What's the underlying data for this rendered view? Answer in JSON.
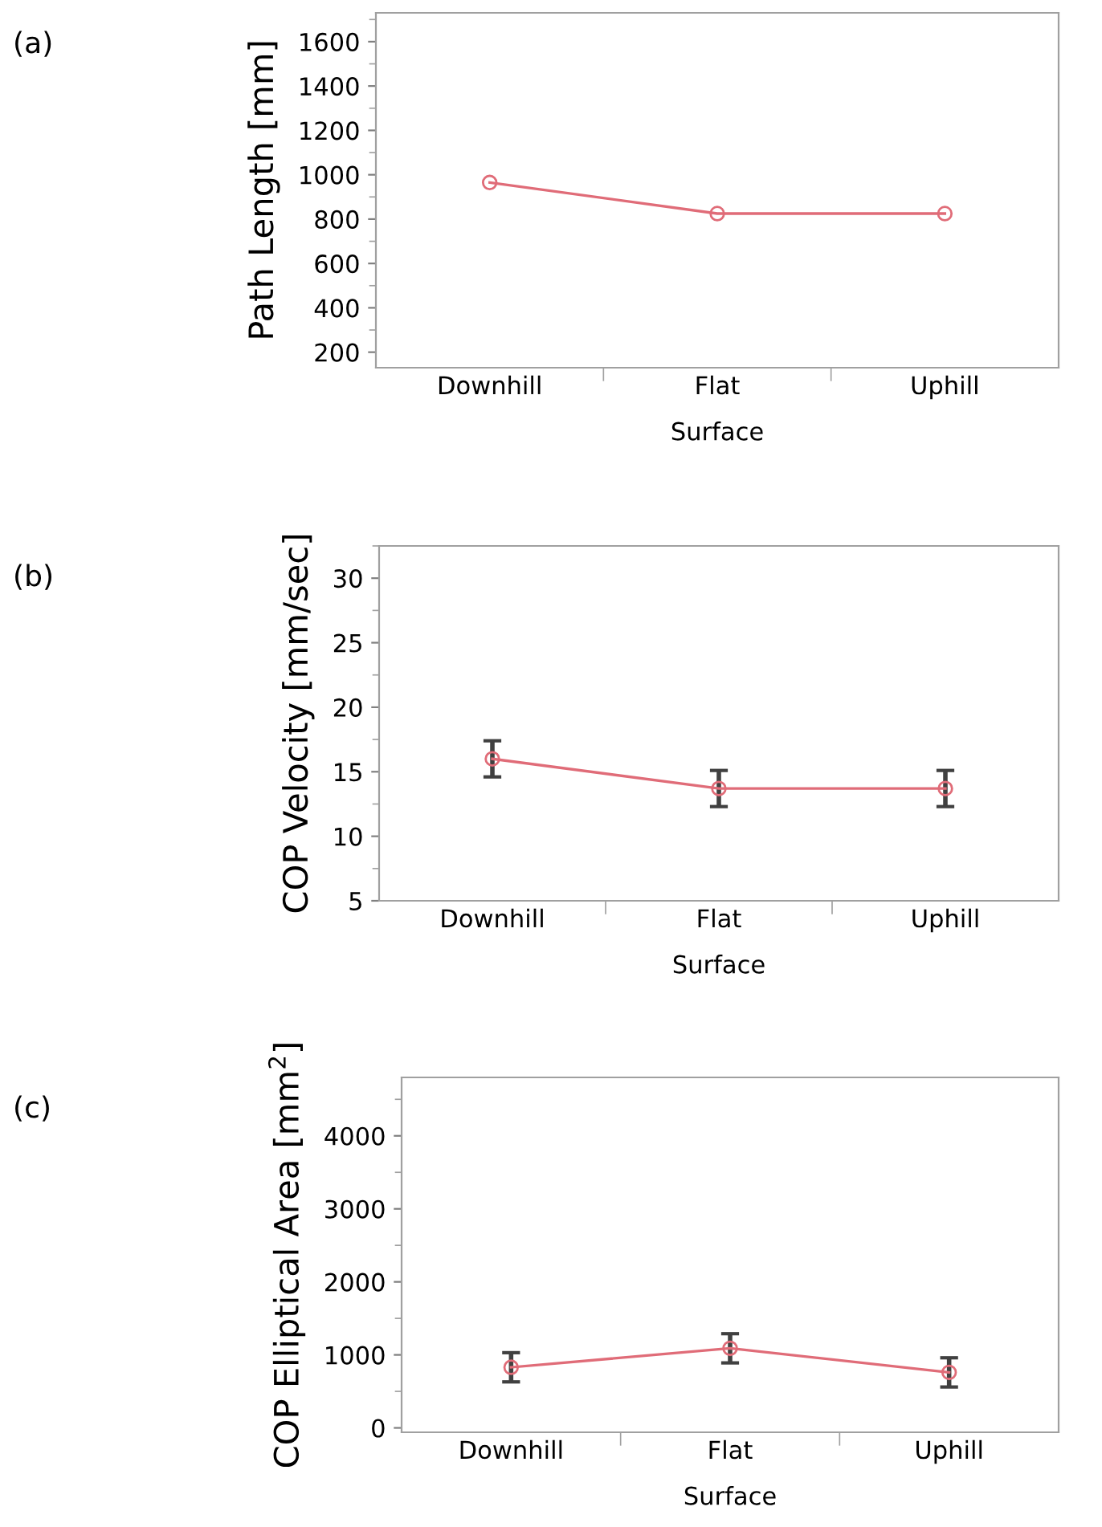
{
  "chart_data": [
    {
      "type": "line",
      "annotations": [
        "(a)"
      ],
      "categories": [
        "Downhill",
        "Flat",
        "Uphill"
      ],
      "xlabel": "Surface",
      "ylabel": "Path Length [mm]",
      "ylim": [
        130,
        1730
      ],
      "yticks": [
        200,
        400,
        600,
        800,
        1000,
        1200,
        1400,
        1600
      ],
      "marker": "circle",
      "grid": false,
      "series": [
        {
          "color": "#e06c78",
          "values": [
            965,
            825,
            825
          ]
        }
      ]
    },
    {
      "type": "line",
      "annotations": [
        "(b)"
      ],
      "categories": [
        "Downhill",
        "Flat",
        "Uphill"
      ],
      "xlabel": "Surface",
      "ylabel": "COP Velocity [mm/sec]",
      "ylim": [
        5,
        32.5
      ],
      "yticks": [
        5,
        10,
        15,
        20,
        25,
        30
      ],
      "marker": "circle",
      "grid": false,
      "series": [
        {
          "color": "#e06c78",
          "values": [
            16.0,
            13.7,
            13.7
          ],
          "errors": [
            1.4,
            1.4,
            1.4
          ]
        }
      ]
    },
    {
      "type": "line",
      "annotations": [
        "(c)"
      ],
      "categories": [
        "Downhill",
        "Flat",
        "Uphill"
      ],
      "xlabel": "Surface",
      "ylabel": "COP Elliptical Area [mm$^{2}$]",
      "ylim": [
        -60,
        4800
      ],
      "yticks": [
        0,
        1000,
        2000,
        3000,
        4000
      ],
      "marker": "circle",
      "grid": false,
      "series": [
        {
          "color": "#e06c78",
          "values": [
            830,
            1090,
            760
          ],
          "errors": [
            200,
            200,
            200
          ]
        }
      ]
    }
  ]
}
